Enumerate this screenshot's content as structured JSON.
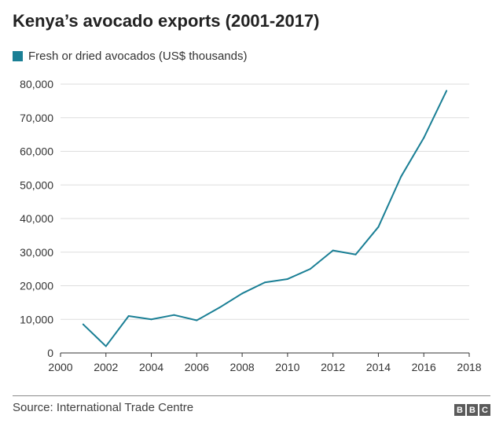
{
  "chart_data": {
    "type": "line",
    "title": "Kenya’s avocado exports (2001-2017)",
    "xlabel": "",
    "ylabel": "",
    "xlim": [
      2000,
      2018
    ],
    "ylim": [
      0,
      80000
    ],
    "x_ticks": [
      2000,
      2002,
      2004,
      2006,
      2008,
      2010,
      2012,
      2014,
      2016,
      2018
    ],
    "y_ticks": [
      0,
      10000,
      20000,
      30000,
      40000,
      50000,
      60000,
      70000,
      80000
    ],
    "x_tick_labels": [
      "2000",
      "2002",
      "2004",
      "2006",
      "2008",
      "2010",
      "2012",
      "2014",
      "2016",
      "2018"
    ],
    "y_tick_labels": [
      "0",
      "10,000",
      "20,000",
      "30,000",
      "40,000",
      "50,000",
      "60,000",
      "70,000",
      "80,000"
    ],
    "grid": "horizontal",
    "legend_position": "top-left",
    "series": [
      {
        "name": "Fresh or dried avocados (US$ thousands)",
        "color": "#1a7f95",
        "x": [
          2001,
          2002,
          2003,
          2004,
          2005,
          2006,
          2007,
          2008,
          2009,
          2010,
          2011,
          2012,
          2013,
          2014,
          2015,
          2016,
          2017
        ],
        "values": [
          8500,
          2000,
          11000,
          10000,
          11300,
          9700,
          13500,
          17700,
          21000,
          22000,
          25000,
          30500,
          29300,
          37500,
          52500,
          64000,
          78000
        ]
      }
    ]
  },
  "footer": {
    "source": "Source: International Trade Centre",
    "logo_letters": [
      "B",
      "B",
      "C"
    ]
  },
  "colors": {
    "grid": "#dddddd",
    "axis": "#333333",
    "line": "#1a7f95"
  }
}
